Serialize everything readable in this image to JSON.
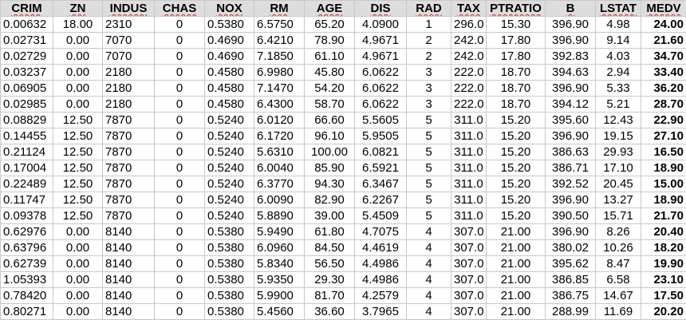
{
  "headers": [
    "CRIM",
    "ZN",
    "INDUS",
    "CHAS",
    "NOX",
    "RM",
    "AGE",
    "DIS",
    "RAD",
    "TAX",
    "PTRATIO",
    "B",
    "LSTAT",
    "MEDV"
  ],
  "rows": [
    [
      "0.00632",
      "18.00",
      "2310",
      "0",
      "0.5380",
      "6.5750",
      "65.20",
      "4.0900",
      "1",
      "296.0",
      "15.30",
      "396.90",
      "4.98",
      "24.00"
    ],
    [
      "0.02731",
      "0.00",
      "7070",
      "0",
      "0.4690",
      "6.4210",
      "78.90",
      "4.9671",
      "2",
      "242.0",
      "17.80",
      "396.90",
      "9.14",
      "21.60"
    ],
    [
      "0.02729",
      "0.00",
      "7070",
      "0",
      "0.4690",
      "7.1850",
      "61.10",
      "4.9671",
      "2",
      "242.0",
      "17.80",
      "392.83",
      "4.03",
      "34.70"
    ],
    [
      "0.03237",
      "0.00",
      "2180",
      "0",
      "0.4580",
      "6.9980",
      "45.80",
      "6.0622",
      "3",
      "222.0",
      "18.70",
      "394.63",
      "2.94",
      "33.40"
    ],
    [
      "0.06905",
      "0.00",
      "2180",
      "0",
      "0.4580",
      "7.1470",
      "54.20",
      "6.0622",
      "3",
      "222.0",
      "18.70",
      "396.90",
      "5.33",
      "36.20"
    ],
    [
      "0.02985",
      "0.00",
      "2180",
      "0",
      "0.4580",
      "6.4300",
      "58.70",
      "6.0622",
      "3",
      "222.0",
      "18.70",
      "394.12",
      "5.21",
      "28.70"
    ],
    [
      "0.08829",
      "12.50",
      "7870",
      "0",
      "0.5240",
      "6.0120",
      "66.60",
      "5.5605",
      "5",
      "311.0",
      "15.20",
      "395.60",
      "12.43",
      "22.90"
    ],
    [
      "0.14455",
      "12.50",
      "7870",
      "0",
      "0.5240",
      "6.1720",
      "96.10",
      "5.9505",
      "5",
      "311.0",
      "15.20",
      "396.90",
      "19.15",
      "27.10"
    ],
    [
      "0.21124",
      "12.50",
      "7870",
      "0",
      "0.5240",
      "5.6310",
      "100.00",
      "6.0821",
      "5",
      "311.0",
      "15.20",
      "386.63",
      "29.93",
      "16.50"
    ],
    [
      "0.17004",
      "12.50",
      "7870",
      "0",
      "0.5240",
      "6.0040",
      "85.90",
      "6.5921",
      "5",
      "311.0",
      "15.20",
      "386.71",
      "17.10",
      "18.90"
    ],
    [
      "0.22489",
      "12.50",
      "7870",
      "0",
      "0.5240",
      "6.3770",
      "94.30",
      "6.3467",
      "5",
      "311.0",
      "15.20",
      "392.52",
      "20.45",
      "15.00"
    ],
    [
      "0.11747",
      "12.50",
      "7870",
      "0",
      "0.5240",
      "6.0090",
      "82.90",
      "6.2267",
      "5",
      "311.0",
      "15.20",
      "396.90",
      "13.27",
      "18.90"
    ],
    [
      "0.09378",
      "12.50",
      "7870",
      "0",
      "0.5240",
      "5.8890",
      "39.00",
      "5.4509",
      "5",
      "311.0",
      "15.20",
      "390.50",
      "15.71",
      "21.70"
    ],
    [
      "0.62976",
      "0.00",
      "8140",
      "0",
      "0.5380",
      "5.9490",
      "61.80",
      "4.7075",
      "4",
      "307.0",
      "21.00",
      "396.90",
      "8.26",
      "20.40"
    ],
    [
      "0.63796",
      "0.00",
      "8140",
      "0",
      "0.5380",
      "6.0960",
      "84.50",
      "4.4619",
      "4",
      "307.0",
      "21.00",
      "380.02",
      "10.26",
      "18.20"
    ],
    [
      "0.62739",
      "0.00",
      "8140",
      "0",
      "0.5380",
      "5.8340",
      "56.50",
      "4.4986",
      "4",
      "307.0",
      "21.00",
      "395.62",
      "8.47",
      "19.90"
    ],
    [
      "1.05393",
      "0.00",
      "8140",
      "0",
      "0.5380",
      "5.9350",
      "29.30",
      "4.4986",
      "4",
      "307.0",
      "21.00",
      "386.85",
      "6.58",
      "23.10"
    ],
    [
      "0.78420",
      "0.00",
      "8140",
      "0",
      "0.5380",
      "5.9900",
      "81.70",
      "4.2579",
      "4",
      "307.0",
      "21.00",
      "386.75",
      "14.67",
      "17.50"
    ],
    [
      "0.80271",
      "0.00",
      "8140",
      "0",
      "0.5380",
      "5.4560",
      "36.60",
      "3.7965",
      "4",
      "307.0",
      "21.00",
      "288.99",
      "11.69",
      "20.20"
    ]
  ]
}
